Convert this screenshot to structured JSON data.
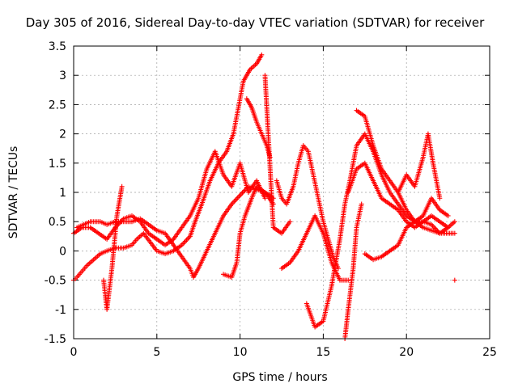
{
  "chart_data": {
    "type": "scatter",
    "title": "Day 305 of 2016, Sidereal Day-to-day VTEC variation (SDTVAR) for receiver",
    "xlabel": "GPS time / hours",
    "ylabel": "SDTVAR / TECUs",
    "xlim": [
      0,
      25
    ],
    "ylim": [
      -1.5,
      3.5
    ],
    "xticks": [
      0,
      5,
      10,
      15,
      20,
      25
    ],
    "yticks": [
      -1.5,
      -1,
      -0.5,
      0,
      0.5,
      1,
      1.5,
      2,
      2.5,
      3,
      3.5
    ],
    "grid": true,
    "marker": "+",
    "color": "#ff0000",
    "series": [
      {
        "x": [
          0.0,
          0.2,
          0.5,
          0.8,
          1.2,
          1.6,
          2.0,
          2.5,
          3.0,
          3.5,
          3.8,
          4.2,
          4.6,
          5.0,
          5.5,
          6.0,
          6.5,
          7.0,
          7.3,
          7.7,
          8.2,
          8.7,
          9.2,
          9.6,
          10.0,
          10.2,
          10.6,
          11.0,
          11.3
        ],
        "y": [
          -0.5,
          -0.45,
          -0.35,
          -0.25,
          -0.15,
          -0.05,
          0.0,
          0.05,
          0.05,
          0.1,
          0.2,
          0.3,
          0.15,
          0.0,
          -0.05,
          0.0,
          0.1,
          0.25,
          0.5,
          0.8,
          1.2,
          1.5,
          1.7,
          2.0,
          2.6,
          2.9,
          3.1,
          3.2,
          3.35
        ]
      },
      {
        "x": [
          10.4,
          10.7,
          11.0,
          11.3,
          11.6,
          11.8
        ],
        "y": [
          2.6,
          2.45,
          2.2,
          2.0,
          1.8,
          1.6
        ]
      },
      {
        "x": [
          0.0,
          0.5,
          1.0,
          1.5,
          2.0,
          2.5,
          3.0,
          3.5,
          4.0,
          4.5,
          5.0,
          5.5,
          6.0,
          6.5,
          7.0,
          7.5,
          8.0,
          8.5,
          9.0,
          9.5,
          10.0,
          10.5,
          11.0,
          11.5
        ],
        "y": [
          0.3,
          0.4,
          0.4,
          0.3,
          0.2,
          0.4,
          0.55,
          0.6,
          0.5,
          0.3,
          0.2,
          0.1,
          0.2,
          0.4,
          0.6,
          0.9,
          1.4,
          1.7,
          1.3,
          1.1,
          1.5,
          1.0,
          1.2,
          0.9
        ]
      },
      {
        "x": [
          0.2,
          0.6,
          1.0,
          1.6,
          2.0,
          2.5,
          3.0,
          3.5,
          4.0,
          4.5,
          5.0,
          5.5,
          6.0,
          6.5,
          7.0,
          7.2,
          7.5,
          8.0,
          8.5,
          9.0,
          9.5,
          10.0,
          10.5,
          11.0,
          11.5,
          12.0
        ],
        "y": [
          0.4,
          0.45,
          0.5,
          0.5,
          0.45,
          0.5,
          0.5,
          0.5,
          0.55,
          0.45,
          0.35,
          0.3,
          0.1,
          -0.1,
          -0.3,
          -0.45,
          -0.3,
          0.0,
          0.3,
          0.6,
          0.8,
          0.95,
          1.1,
          1.05,
          1.0,
          0.8
        ]
      },
      {
        "x": [
          9.0,
          9.5,
          9.8,
          10.0,
          10.3,
          10.7,
          11.0,
          11.5,
          12.0
        ],
        "y": [
          -0.4,
          -0.45,
          -0.2,
          0.3,
          0.6,
          0.9,
          1.1,
          1.0,
          0.9
        ]
      },
      {
        "x": [
          1.8,
          2.0,
          2.3,
          2.6,
          2.9
        ],
        "y": [
          -0.5,
          -1.0,
          -0.3,
          0.6,
          1.1
        ]
      },
      {
        "x": [
          12.2,
          12.5,
          12.8,
          13.2,
          13.5,
          13.8,
          14.1,
          14.4,
          14.7,
          15.0,
          15.3,
          15.6,
          15.9
        ],
        "y": [
          1.2,
          0.9,
          0.8,
          1.1,
          1.5,
          1.8,
          1.7,
          1.3,
          0.9,
          0.5,
          0.2,
          -0.1,
          -0.3
        ]
      },
      {
        "x": [
          12.5,
          13.0,
          13.5,
          14.0,
          14.5,
          15.0,
          15.5,
          16.0,
          16.5
        ],
        "y": [
          -0.3,
          -0.2,
          0.0,
          0.3,
          0.6,
          0.3,
          -0.2,
          -0.5,
          -0.5
        ]
      },
      {
        "x": [
          14.0,
          14.5,
          15.0,
          15.5,
          16.0,
          16.3,
          16.6,
          17.0,
          17.5,
          18.0,
          18.5,
          19.0,
          19.5,
          20.0,
          20.5,
          21.0,
          21.5,
          22.0,
          22.5,
          22.9
        ],
        "y": [
          -0.9,
          -1.3,
          -1.2,
          -0.6,
          0.2,
          0.8,
          1.2,
          1.8,
          2.0,
          1.7,
          1.3,
          1.0,
          0.8,
          0.6,
          0.5,
          0.4,
          0.35,
          0.3,
          0.3,
          0.3
        ]
      },
      {
        "x": [
          16.3,
          16.5,
          16.8,
          17.0,
          17.3
        ],
        "y": [
          -1.5,
          -1.0,
          -0.3,
          0.4,
          0.8
        ]
      },
      {
        "x": [
          17.0,
          17.5,
          18.0,
          18.5,
          19.0,
          19.5,
          20.0,
          20.5,
          21.0,
          21.5,
          22.0,
          22.5
        ],
        "y": [
          2.4,
          2.3,
          1.8,
          1.4,
          1.2,
          1.0,
          0.7,
          0.5,
          0.6,
          0.9,
          0.7,
          0.6
        ]
      },
      {
        "x": [
          17.5,
          18.0,
          18.5,
          19.0,
          19.5,
          20.0,
          20.5,
          21.0,
          21.5,
          22.0,
          22.5,
          22.9
        ],
        "y": [
          -0.05,
          -0.15,
          -0.1,
          0.0,
          0.1,
          0.4,
          0.5,
          0.5,
          0.45,
          0.3,
          0.4,
          0.5
        ]
      },
      {
        "x": [
          16.5,
          17.0,
          17.5,
          18.0,
          18.5,
          19.0,
          19.5,
          20.0,
          20.5,
          21.0,
          21.5,
          22.0,
          22.5
        ],
        "y": [
          1.0,
          1.4,
          1.5,
          1.2,
          0.9,
          0.8,
          0.7,
          0.5,
          0.4,
          0.5,
          0.6,
          0.5,
          0.4
        ]
      },
      {
        "x": [
          19.5,
          20.0,
          20.5,
          21.0,
          21.3,
          21.6,
          22.0
        ],
        "y": [
          1.0,
          1.3,
          1.1,
          1.6,
          2.0,
          1.5,
          0.9
        ]
      },
      {
        "x": [
          11.5,
          12.0,
          12.5,
          13.0
        ],
        "y": [
          3.0,
          0.4,
          0.3,
          0.5
        ]
      },
      {
        "x": [
          22.9
        ],
        "y": [
          -0.5
        ]
      }
    ]
  }
}
